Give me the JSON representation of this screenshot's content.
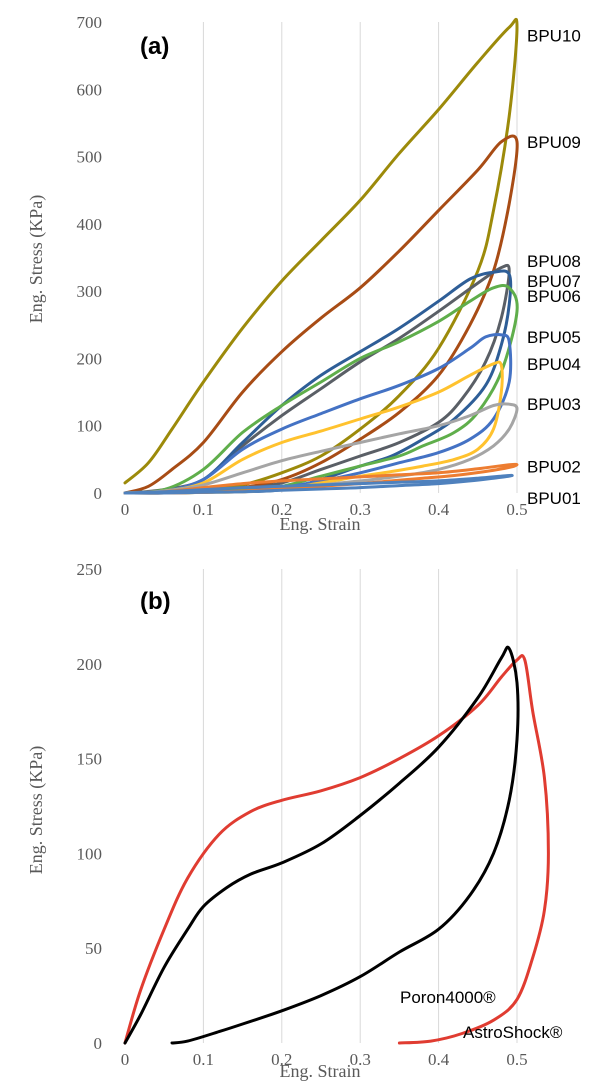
{
  "chart_data": [
    {
      "panel": "(a)",
      "type": "line",
      "xlabel": "Eng. Strain",
      "ylabel": "Eng. Stress (KPa)",
      "xlim": [
        0,
        0.5
      ],
      "ylim": [
        0,
        700
      ],
      "xticks": [
        "0",
        "0.1",
        "0.2",
        "0.3",
        "0.4",
        "0.5"
      ],
      "yticks": [
        "0",
        "100",
        "200",
        "300",
        "400",
        "500",
        "600",
        "700"
      ],
      "grid": "vertical",
      "series": [
        {
          "name": "BPU10",
          "color": "#9c8a0a",
          "x": [
            0,
            0.03,
            0.06,
            0.1,
            0.15,
            0.2,
            0.25,
            0.3,
            0.35,
            0.4,
            0.45,
            0.49,
            0.5,
            0.49,
            0.47,
            0.45,
            0.4,
            0.35,
            0.3,
            0.25,
            0.2,
            0.15,
            0.1,
            0.05,
            0
          ],
          "y": [
            15,
            45,
            95,
            165,
            245,
            315,
            375,
            435,
            505,
            570,
            640,
            692,
            692,
            560,
            420,
            330,
            215,
            145,
            95,
            55,
            30,
            12,
            4,
            1,
            0
          ]
        },
        {
          "name": "BPU09",
          "color": "#a84c15",
          "x": [
            0,
            0.03,
            0.06,
            0.1,
            0.15,
            0.2,
            0.25,
            0.3,
            0.35,
            0.4,
            0.45,
            0.48,
            0.5,
            0.49,
            0.47,
            0.44,
            0.4,
            0.35,
            0.3,
            0.25,
            0.2,
            0.15,
            0.1,
            0.05,
            0
          ],
          "y": [
            0,
            10,
            35,
            75,
            150,
            210,
            260,
            305,
            360,
            420,
            480,
            522,
            522,
            430,
            330,
            250,
            175,
            120,
            80,
            45,
            20,
            8,
            2,
            0,
            0
          ]
        },
        {
          "name": "BPU08",
          "color": "#5a5f66",
          "x": [
            0,
            0.05,
            0.1,
            0.15,
            0.2,
            0.25,
            0.3,
            0.35,
            0.4,
            0.45,
            0.48,
            0.49,
            0.48,
            0.46,
            0.43,
            0.4,
            0.35,
            0.3,
            0.25,
            0.2,
            0.15,
            0.1,
            0.05,
            0
          ],
          "y": [
            0,
            5,
            20,
            70,
            115,
            155,
            195,
            230,
            270,
            312,
            335,
            330,
            260,
            195,
            140,
            105,
            75,
            55,
            35,
            15,
            6,
            2,
            0,
            0
          ]
        },
        {
          "name": "BPU07",
          "color": "#2e5e97",
          "x": [
            0,
            0.05,
            0.1,
            0.15,
            0.2,
            0.25,
            0.3,
            0.35,
            0.4,
            0.44,
            0.47,
            0.49,
            0.49,
            0.48,
            0.46,
            0.42,
            0.38,
            0.34,
            0.3,
            0.25,
            0.2,
            0.15,
            0.1,
            0.05,
            0
          ],
          "y": [
            0,
            3,
            20,
            75,
            130,
            175,
            210,
            245,
            285,
            318,
            328,
            325,
            280,
            220,
            160,
            110,
            80,
            55,
            40,
            20,
            5,
            2,
            1,
            0,
            0
          ]
        },
        {
          "name": "BPU06",
          "color": "#5fae4b",
          "x": [
            0,
            0.05,
            0.1,
            0.15,
            0.2,
            0.25,
            0.3,
            0.35,
            0.4,
            0.44,
            0.47,
            0.49,
            0.5,
            0.48,
            0.45,
            0.42,
            0.38,
            0.35,
            0.3,
            0.25,
            0.2,
            0.15,
            0.1,
            0.05,
            0
          ],
          "y": [
            0,
            5,
            35,
            90,
            130,
            165,
            200,
            225,
            255,
            285,
            305,
            305,
            270,
            180,
            120,
            90,
            70,
            55,
            40,
            25,
            10,
            4,
            1,
            0,
            0
          ]
        },
        {
          "name": "BPU05",
          "color": "#4472c4",
          "x": [
            0,
            0.05,
            0.1,
            0.15,
            0.2,
            0.25,
            0.3,
            0.35,
            0.4,
            0.44,
            0.46,
            0.48,
            0.49,
            0.49,
            0.47,
            0.44,
            0.4,
            0.35,
            0.3,
            0.25,
            0.2,
            0.15,
            0.1,
            0.05,
            0
          ],
          "y": [
            0,
            3,
            20,
            65,
            95,
            118,
            140,
            160,
            185,
            215,
            232,
            235,
            225,
            165,
            110,
            80,
            60,
            45,
            30,
            18,
            8,
            3,
            1,
            0,
            0
          ]
        },
        {
          "name": "BPU04",
          "color": "#ffc22e",
          "x": [
            0,
            0.05,
            0.1,
            0.15,
            0.2,
            0.25,
            0.3,
            0.35,
            0.4,
            0.44,
            0.47,
            0.48,
            0.48,
            0.47,
            0.45,
            0.42,
            0.38,
            0.34,
            0.3,
            0.25,
            0.2,
            0.15,
            0.1,
            0.05,
            0
          ],
          "y": [
            0,
            3,
            15,
            50,
            75,
            92,
            110,
            128,
            150,
            175,
            192,
            190,
            150,
            95,
            65,
            50,
            40,
            32,
            25,
            15,
            6,
            2,
            1,
            0,
            0
          ]
        },
        {
          "name": "BPU03",
          "color": "#a5a5a5",
          "x": [
            0,
            0.05,
            0.1,
            0.15,
            0.2,
            0.25,
            0.3,
            0.35,
            0.4,
            0.44,
            0.47,
            0.49,
            0.5,
            0.49,
            0.47,
            0.44,
            0.4,
            0.35,
            0.3,
            0.25,
            0.2,
            0.15,
            0.1,
            0.05,
            0
          ],
          "y": [
            0,
            3,
            12,
            30,
            48,
            62,
            75,
            88,
            100,
            115,
            130,
            132,
            125,
            95,
            70,
            50,
            35,
            25,
            18,
            12,
            6,
            2,
            1,
            0,
            0
          ]
        },
        {
          "name": "BPU02",
          "color": "#ed7d31",
          "x": [
            0,
            0.05,
            0.1,
            0.15,
            0.2,
            0.25,
            0.3,
            0.35,
            0.4,
            0.45,
            0.49,
            0.5,
            0.49,
            0.46,
            0.42,
            0.38,
            0.34,
            0.3,
            0.25,
            0.2,
            0.15,
            0.1,
            0.05,
            0
          ],
          "y": [
            0,
            2,
            8,
            14,
            18,
            21,
            24,
            27,
            30,
            36,
            42,
            42,
            38,
            32,
            26,
            22,
            18,
            14,
            10,
            6,
            3,
            1,
            0,
            0
          ]
        },
        {
          "name": "BPU01",
          "color": "#4f81bd",
          "x": [
            0,
            0.05,
            0.1,
            0.15,
            0.2,
            0.25,
            0.3,
            0.35,
            0.4,
            0.45,
            0.49,
            0.49,
            0.47,
            0.44,
            0.4,
            0.35,
            0.3,
            0.25,
            0.2,
            0.15,
            0.1,
            0.05,
            0
          ],
          "y": [
            0,
            2,
            5,
            8,
            10,
            12,
            14,
            16,
            18,
            22,
            26,
            25,
            22,
            18,
            14,
            11,
            8,
            6,
            4,
            2,
            1,
            0,
            0
          ]
        }
      ]
    },
    {
      "panel": "(b)",
      "type": "line",
      "xlabel": "Eng. Strain",
      "ylabel": "Eng. Stress (KPa)",
      "xlim": [
        0,
        0.55
      ],
      "ylim": [
        0,
        250
      ],
      "xticks": [
        "0",
        "0.1",
        "0.2",
        "0.3",
        "0.4",
        "0.5"
      ],
      "yticks": [
        "0",
        "50",
        "100",
        "150",
        "200",
        "250"
      ],
      "grid": "vertical",
      "series": [
        {
          "name": "AstroShock®",
          "color": "#e03c31",
          "x": [
            0,
            0.02,
            0.05,
            0.08,
            0.12,
            0.16,
            0.2,
            0.25,
            0.3,
            0.35,
            0.4,
            0.45,
            0.48,
            0.5,
            0.51,
            0.52,
            0.535,
            0.54,
            0.535,
            0.52,
            0.5,
            0.47,
            0.43,
            0.39,
            0.35
          ],
          "y": [
            0,
            28,
            60,
            87,
            110,
            122,
            128,
            133,
            140,
            150,
            162,
            178,
            193,
            202,
            202,
            175,
            140,
            100,
            70,
            45,
            23,
            12,
            5,
            1,
            0
          ]
        },
        {
          "name": "Poron4000®",
          "color": "#000000",
          "x": [
            0,
            0.02,
            0.05,
            0.08,
            0.1,
            0.13,
            0.16,
            0.2,
            0.25,
            0.3,
            0.35,
            0.4,
            0.45,
            0.48,
            0.49,
            0.5,
            0.5,
            0.49,
            0.47,
            0.44,
            0.4,
            0.35,
            0.3,
            0.25,
            0.2,
            0.15,
            0.12,
            0.08,
            0.06
          ],
          "y": [
            0,
            15,
            40,
            60,
            72,
            82,
            89,
            95,
            105,
            120,
            137,
            156,
            182,
            203,
            208,
            190,
            160,
            128,
            100,
            78,
            60,
            48,
            35,
            25,
            17,
            10,
            6,
            1,
            0
          ]
        }
      ]
    }
  ]
}
